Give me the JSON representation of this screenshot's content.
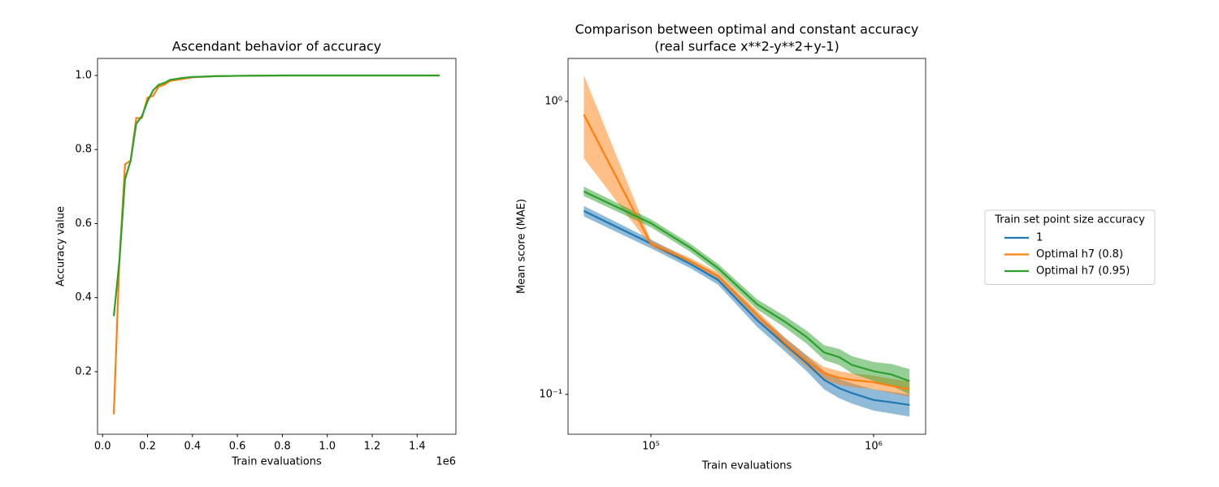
{
  "chart_data": [
    {
      "type": "line",
      "title": "Ascendant behavior of accuracy",
      "x_label": "Train evaluations",
      "y_label": "Accuracy value",
      "x_offset_label": "1e6",
      "x": [
        50000,
        75000,
        100000,
        125000,
        150000,
        175000,
        200000,
        225000,
        250000,
        275000,
        300000,
        350000,
        400000,
        500000,
        600000,
        800000,
        1000000,
        1200000,
        1500000
      ],
      "series": [
        {
          "color": "#ff7f0e",
          "values": [
            0.085,
            0.5,
            0.76,
            0.77,
            0.885,
            0.885,
            0.94,
            0.945,
            0.97,
            0.975,
            0.985,
            0.99,
            0.995,
            0.998,
            0.999,
            1.0,
            1.0,
            1.0,
            1.0
          ]
        },
        {
          "color": "#2ca02c",
          "values": [
            0.35,
            0.5,
            0.72,
            0.77,
            0.87,
            0.89,
            0.93,
            0.96,
            0.975,
            0.98,
            0.988,
            0.993,
            0.996,
            0.998,
            0.999,
            1.0,
            1.0,
            1.0,
            1.0
          ]
        }
      ],
      "xlim": [
        -22500,
        1572500
      ],
      "ylim": [
        0.031,
        1.046
      ],
      "xticks": [
        {
          "value": 0,
          "label": "0.0"
        },
        {
          "value": 200000,
          "label": "0.2"
        },
        {
          "value": 400000,
          "label": "0.4"
        },
        {
          "value": 600000,
          "label": "0.6"
        },
        {
          "value": 800000,
          "label": "0.8"
        },
        {
          "value": 1000000,
          "label": "1.0"
        },
        {
          "value": 1200000,
          "label": "1.2"
        },
        {
          "value": 1400000,
          "label": "1.4"
        }
      ],
      "yticks": [
        0.2,
        0.4,
        0.6,
        0.8,
        {
          "value": 1,
          "label": "1.0"
        }
      ]
    },
    {
      "type": "line",
      "title": "Comparison between optimal and constant accuracy",
      "subtitle": "(real surface x**2-y**2+y-1)",
      "x_label": "Train evaluations",
      "y_label": "Mean score (MAE)",
      "x_scale": "log",
      "y_scale": "log",
      "legend_title": "Train set point size accuracy",
      "legend_position": "outside-right",
      "x": [
        50000,
        100000,
        150000,
        200000,
        300000,
        400000,
        500000,
        600000,
        700000,
        800000,
        1000000,
        1200000,
        1450000
      ],
      "series": [
        {
          "name": "1",
          "color": "#1f77b4",
          "values": [
            0.423,
            0.327,
            0.279,
            0.246,
            0.179,
            0.148,
            0.128,
            0.112,
            0.105,
            0.101,
            0.0957,
            0.094,
            0.092
          ],
          "lower": [
            0.405,
            0.315,
            0.27,
            0.237,
            0.17,
            0.14,
            0.12,
            0.104,
            0.097,
            0.093,
            0.088,
            0.086,
            0.084
          ],
          "upper": [
            0.44,
            0.338,
            0.288,
            0.255,
            0.188,
            0.156,
            0.136,
            0.12,
            0.113,
            0.109,
            0.104,
            0.102,
            0.1
          ]
        },
        {
          "name": "Optimal h7 (0.8)",
          "color": "#ff7f0e",
          "values": [
            0.903,
            0.327,
            0.285,
            0.254,
            0.187,
            0.15,
            0.13,
            0.118,
            0.114,
            0.112,
            0.11,
            0.107,
            0.104
          ],
          "lower": [
            0.64,
            0.32,
            0.278,
            0.247,
            0.181,
            0.144,
            0.124,
            0.112,
            0.108,
            0.106,
            0.104,
            0.101,
            0.098
          ],
          "upper": [
            1.23,
            0.335,
            0.292,
            0.261,
            0.193,
            0.156,
            0.136,
            0.124,
            0.12,
            0.118,
            0.116,
            0.113,
            0.111
          ]
        },
        {
          "name": "Optimal h7 (0.95)",
          "color": "#2ca02c",
          "values": [
            0.493,
            0.384,
            0.317,
            0.27,
            0.203,
            0.177,
            0.157,
            0.139,
            0.134,
            0.126,
            0.12,
            0.117,
            0.111
          ],
          "lower": [
            0.475,
            0.372,
            0.307,
            0.261,
            0.195,
            0.169,
            0.149,
            0.131,
            0.126,
            0.118,
            0.111,
            0.107,
            0.1
          ],
          "upper": [
            0.512,
            0.396,
            0.327,
            0.279,
            0.211,
            0.185,
            0.165,
            0.147,
            0.143,
            0.135,
            0.129,
            0.127,
            0.122
          ]
        }
      ],
      "xlim": [
        42460,
        1712000
      ],
      "ylim": [
        0.0731,
        1.402
      ],
      "xticks": [
        {
          "value": 100000,
          "label": "10⁵"
        },
        {
          "value": 1000000,
          "label": "10⁶"
        }
      ],
      "yticks": [
        {
          "value": 0.1,
          "label": "10⁻¹"
        },
        {
          "value": 1,
          "label": "10⁰"
        }
      ]
    }
  ]
}
